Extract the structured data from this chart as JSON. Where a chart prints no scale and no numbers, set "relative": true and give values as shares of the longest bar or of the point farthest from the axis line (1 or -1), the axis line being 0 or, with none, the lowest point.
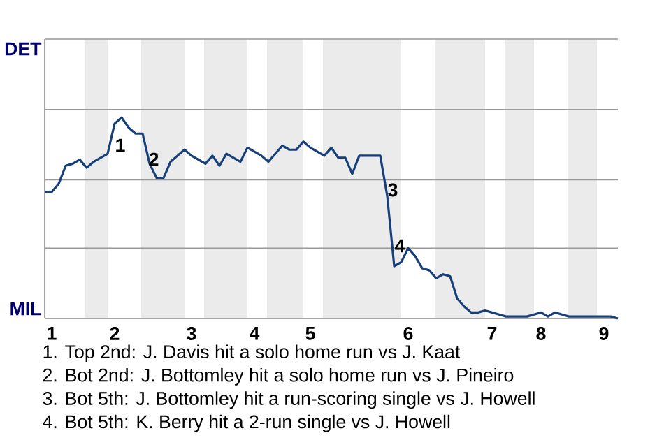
{
  "chart_data": {
    "type": "line",
    "relative": true,
    "categories": [
      null,
      "1",
      null,
      null,
      null,
      null,
      null,
      null,
      null,
      null,
      "2",
      null,
      null,
      null,
      null,
      null,
      null,
      null,
      null,
      null,
      null,
      "3",
      null,
      null,
      null,
      null,
      null,
      null,
      null,
      null,
      "4",
      null,
      null,
      null,
      null,
      null,
      null,
      null,
      "5",
      null,
      null,
      null,
      null,
      null,
      null,
      null,
      null,
      null,
      null,
      null,
      null,
      null,
      "6",
      null,
      null,
      null,
      null,
      null,
      null,
      null,
      null,
      null,
      null,
      null,
      "7",
      null,
      null,
      null,
      null,
      null,
      null,
      "8",
      null,
      null,
      null,
      null,
      null,
      null,
      null,
      null,
      "9",
      null,
      null
    ],
    "series": [
      {
        "color": "#173f7a",
        "values": [
          0.63,
          0.63,
          0.67,
          0.76,
          0.77,
          0.79,
          0.75,
          0.78,
          0.8,
          0.82,
          0.97,
          1,
          0.95,
          0.92,
          0.92,
          0.77,
          0.7,
          0.7,
          0.78,
          0.81,
          0.84,
          0.81,
          0.79,
          0.77,
          0.81,
          0.76,
          0.82,
          0.8,
          0.78,
          0.85,
          0.83,
          0.81,
          0.78,
          0.82,
          0.86,
          0.84,
          0.84,
          0.88,
          0.85,
          0.83,
          0.81,
          0.85,
          0.8,
          0.8,
          0.72,
          0.81,
          0.81,
          0.81,
          0.81,
          0.61,
          0.26,
          0.28,
          0.35,
          0.31,
          0.25,
          0.24,
          0.2,
          0.22,
          0.21,
          0.1,
          0.06,
          0.03,
          0.03,
          0.04,
          0.03,
          0.02,
          0.01,
          0.01,
          0.01,
          0.01,
          0.02,
          0.03,
          0.01,
          0.03,
          0.02,
          0.01,
          0.01,
          0.01,
          0.01,
          0.01,
          0.01,
          0.01,
          0
        ]
      }
    ],
    "ref_lines": [
      {
        "axis": "y",
        "value": 0.35,
        "color": "#999999"
      },
      {
        "axis": "y",
        "value": 0.69,
        "color": "#999999"
      },
      {
        "axis": "y",
        "value": 1.04,
        "color": "#999999"
      },
      {
        "axis": "y",
        "value": 1.39,
        "color": "#999999"
      }
    ],
    "annotations": [
      "DET",
      "MIL",
      "1",
      "2",
      "3",
      "4",
      "1. Top 2nd: J. Davis hit a solo home run vs J. Kaat",
      "2. Bot 2nd: J. Bottomley hit a solo home run vs J. Pineiro",
      "3. Bot 5th: J. Bottomley hit a run-scoring single vs J. Howell",
      "4. Bot 5th: K. Berry hit a 2-run single vs J. Howell"
    ]
  }
}
